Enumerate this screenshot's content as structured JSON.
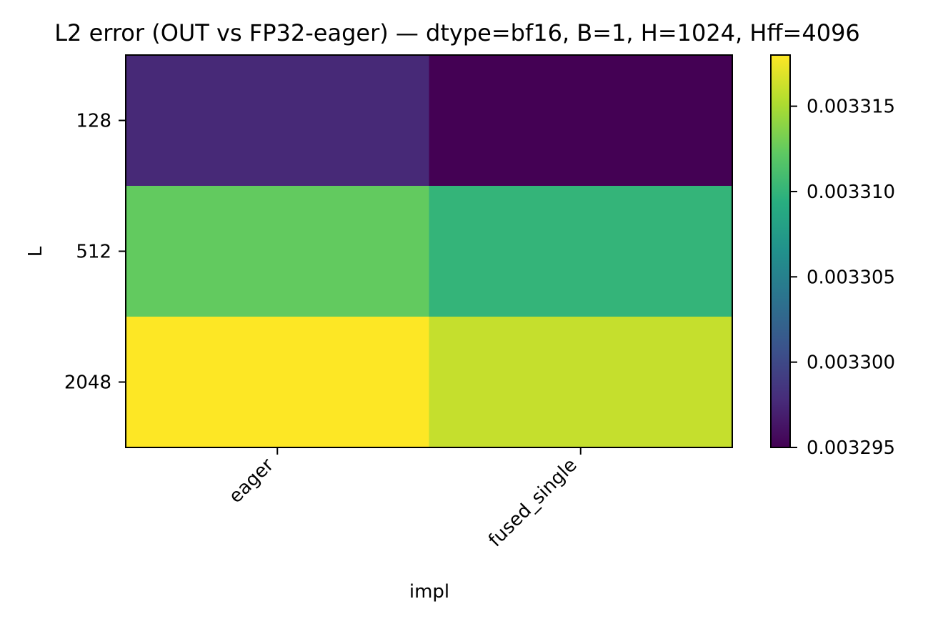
{
  "chart_data": {
    "type": "heatmap",
    "title": "L2 error (OUT vs FP32-eager) — dtype=bf16, B=1, H=1024, Hff=4096",
    "xlabel": "impl",
    "ylabel": "L",
    "x_categories": [
      "eager",
      "fused_single"
    ],
    "y_categories": [
      "128",
      "512",
      "2048"
    ],
    "values": [
      [
        0.0032976,
        0.003295
      ],
      [
        0.0033124,
        0.00331
      ],
      [
        0.003318,
        0.003316
      ]
    ],
    "colormap": "viridis",
    "colorbar": {
      "min": 0.003295,
      "max": 0.003318,
      "ticks": [
        0.003295,
        0.0033,
        0.003305,
        0.00331,
        0.003315
      ],
      "tick_labels": [
        "0.003295",
        "0.003300",
        "0.003305",
        "0.003310",
        "0.003315"
      ]
    }
  }
}
